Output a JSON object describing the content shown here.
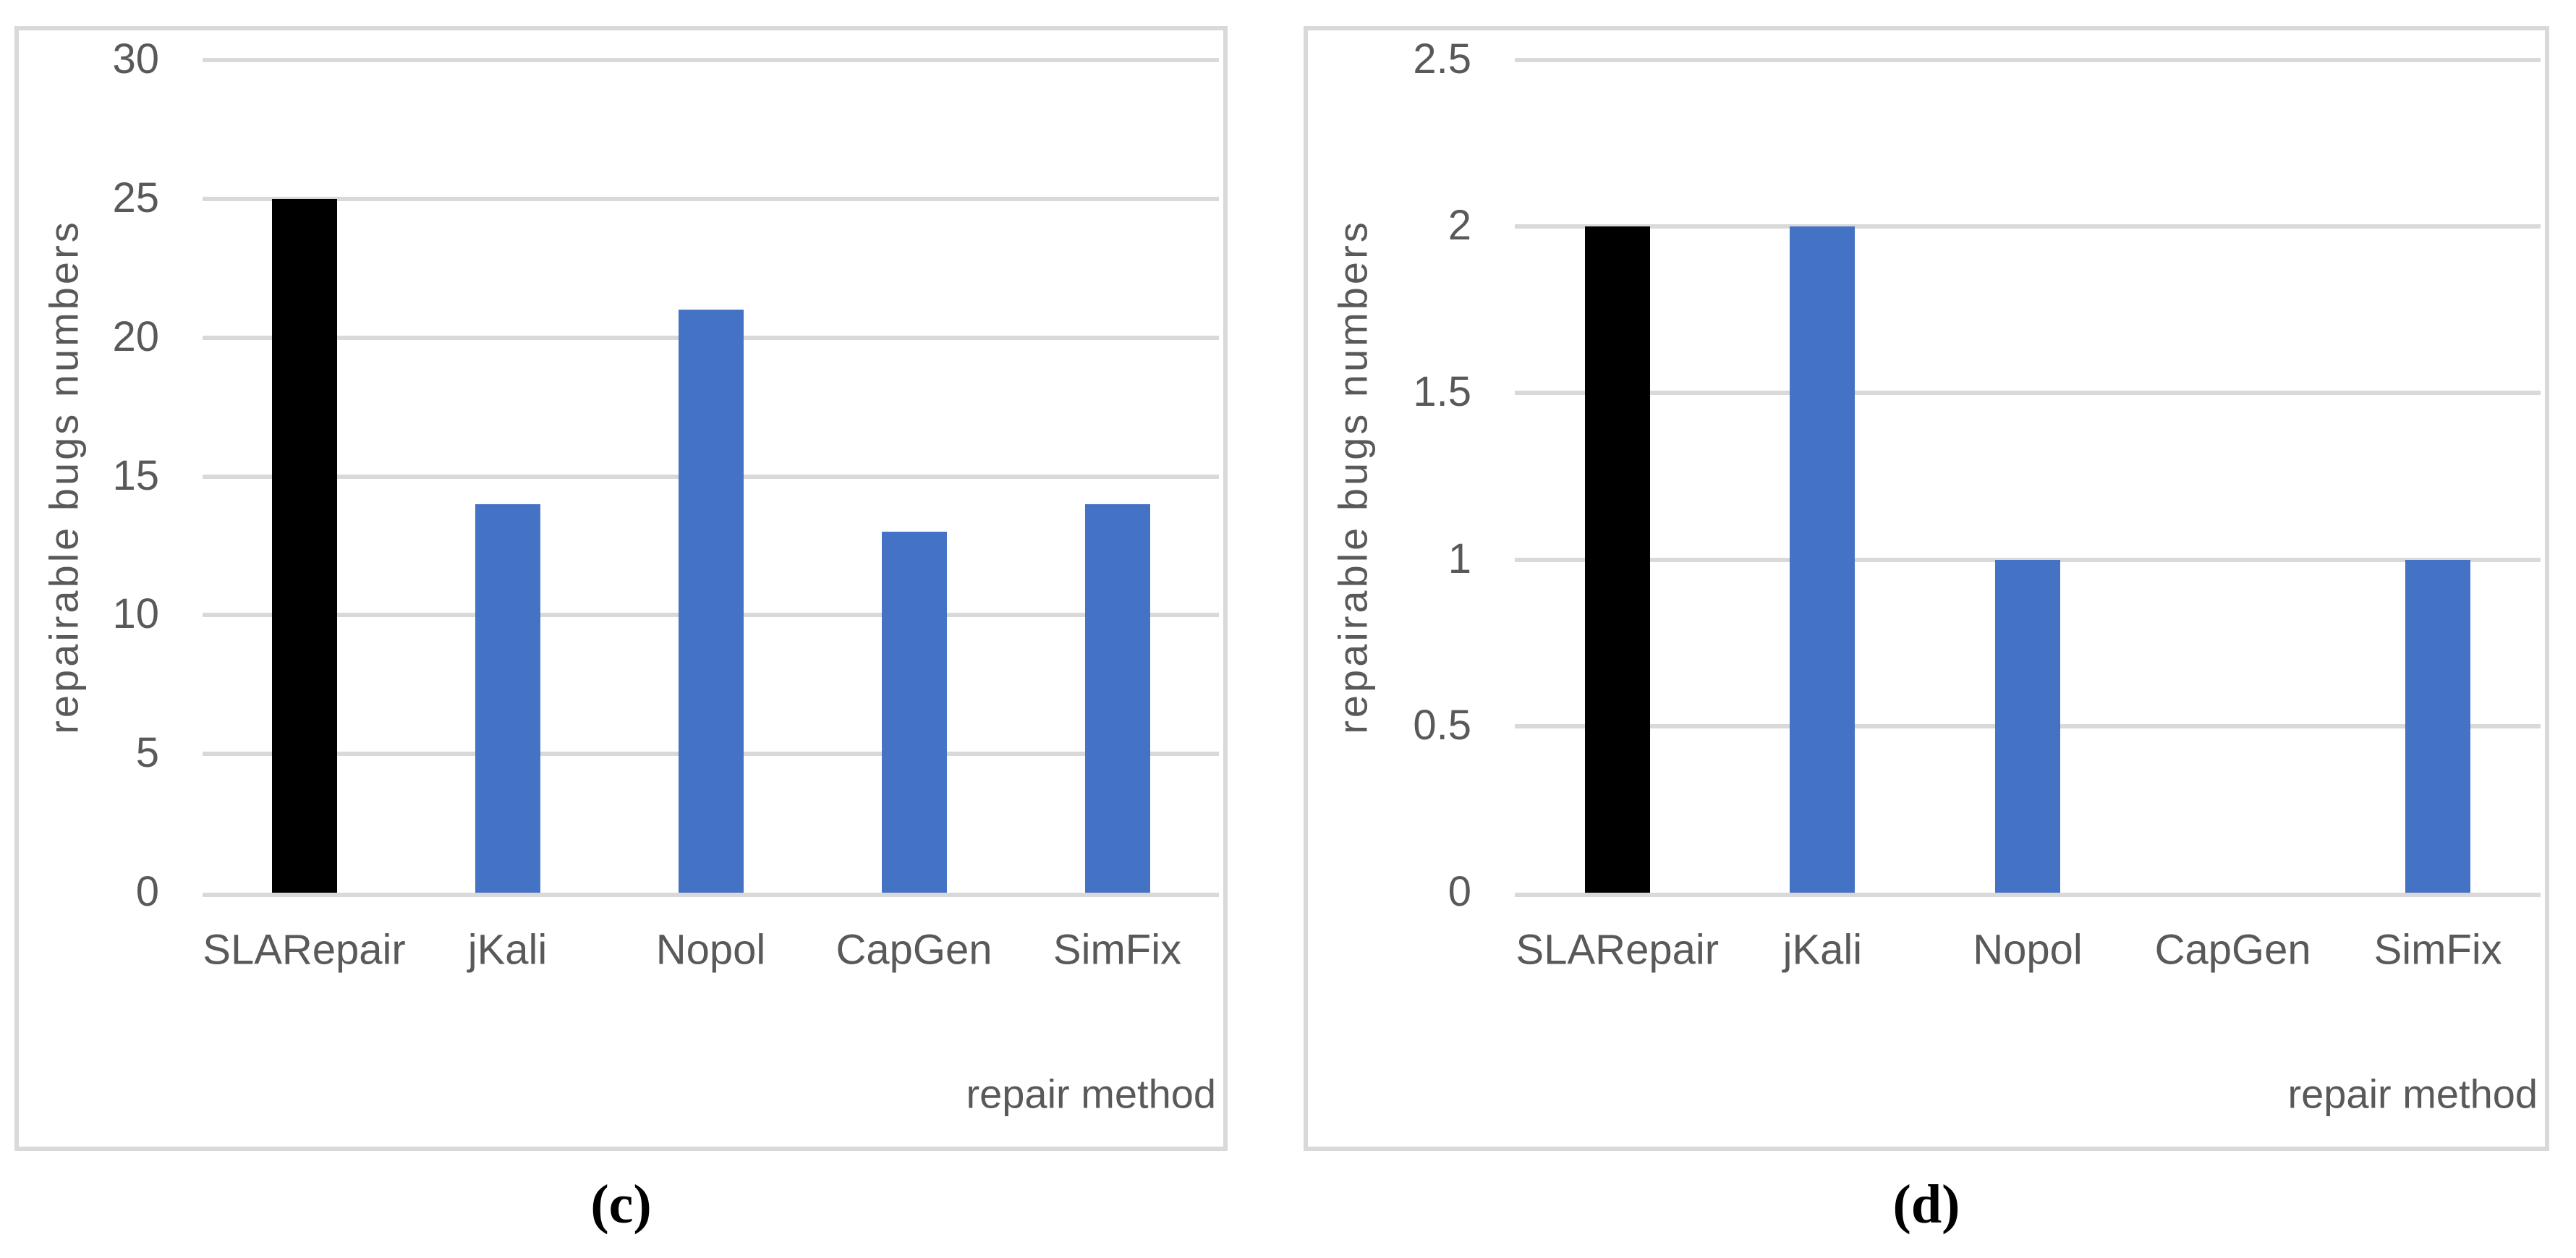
{
  "figure": {
    "captions": {
      "c": "(c)",
      "d": "(d)"
    }
  },
  "colors": {
    "bar_blue": "#4472C4",
    "bar_black": "#000000",
    "gridline": "#D9D9D9",
    "axis_text": "#595959",
    "panel_border": "#D9D9D9"
  },
  "chart_data": [
    {
      "type": "bar",
      "panel": "c",
      "title": "",
      "xlabel": "repair method",
      "ylabel": "repairable bugs numbers",
      "categories": [
        "SLARepair",
        "jKali",
        "Nopol",
        "CapGen",
        "SimFix"
      ],
      "values": [
        25,
        14,
        21,
        13,
        14
      ],
      "bar_colors": [
        "#000000",
        "#4472C4",
        "#4472C4",
        "#4472C4",
        "#4472C4"
      ],
      "ylim": [
        0,
        30
      ],
      "yticks": [
        "0",
        "5",
        "10",
        "15",
        "20",
        "25",
        "30"
      ],
      "grid": true,
      "legend": false
    },
    {
      "type": "bar",
      "panel": "d",
      "title": "",
      "xlabel": "repair method",
      "ylabel": "repairable bugs numbers",
      "categories": [
        "SLARepair",
        "jKali",
        "Nopol",
        "CapGen",
        "SimFix"
      ],
      "values": [
        2,
        2,
        1,
        0,
        1
      ],
      "bar_colors": [
        "#000000",
        "#4472C4",
        "#4472C4",
        "#4472C4",
        "#4472C4"
      ],
      "ylim": [
        0,
        2.5
      ],
      "yticks": [
        "0",
        "0.5",
        "1",
        "1.5",
        "2",
        "2.5"
      ],
      "grid": true,
      "legend": false
    }
  ]
}
